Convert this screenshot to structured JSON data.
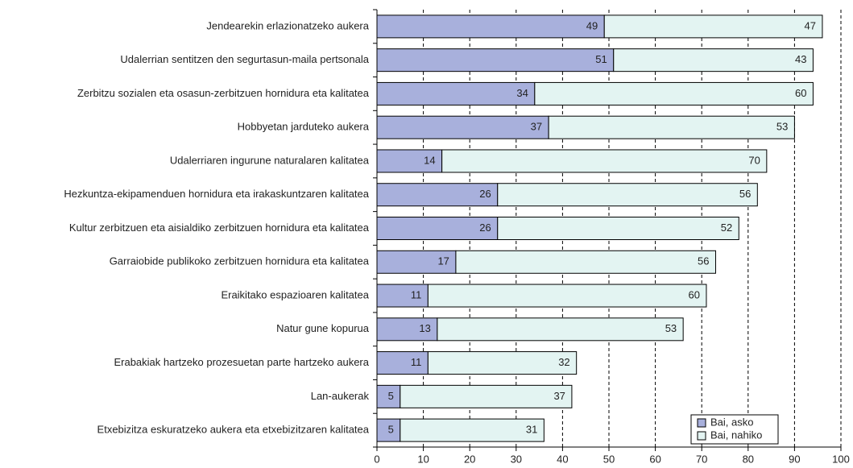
{
  "chart_data": {
    "type": "stacked_barh",
    "categories": [
      "Jendearekin erlazionatzeko aukera",
      "Udalerrian sentitzen den segurtasun-maila pertsonala",
      "Zerbitzu sozialen eta osasun-zerbitzuen hornidura eta kalitatea",
      "Hobbyetan jarduteko aukera",
      "Udalerriaren ingurune naturalaren kalitatea",
      "Hezkuntza-ekipamenduen hornidura eta irakaskuntzaren kalitatea",
      "Kultur zerbitzuen eta aisialdiko zerbitzuen hornidura eta kalitatea",
      "Garraiobide publikoko zerbitzuen hornidura eta kalitatea",
      "Eraikitako espazioaren kalitatea",
      "Natur gune kopurua",
      "Erabakiak hartzeko prozesuetan parte hartzeko aukera",
      "Lan-aukerak",
      "Etxebizitza eskuratzeko aukera eta etxebizitzaren kalitatea"
    ],
    "series": [
      {
        "name": "Bai, asko",
        "color": "#a8b0dc",
        "values": [
          49,
          51,
          34,
          37,
          14,
          26,
          26,
          17,
          11,
          13,
          11,
          5,
          5
        ]
      },
      {
        "name": "Bai, nahiko",
        "color": "#e3f4f2",
        "values": [
          47,
          43,
          60,
          53,
          70,
          56,
          52,
          56,
          60,
          53,
          32,
          37,
          31
        ]
      }
    ],
    "xlim": [
      0,
      100
    ],
    "xticks": [
      0,
      10,
      20,
      30,
      40,
      50,
      60,
      70,
      80,
      90,
      100
    ],
    "grid": true,
    "legend": "lower right"
  }
}
